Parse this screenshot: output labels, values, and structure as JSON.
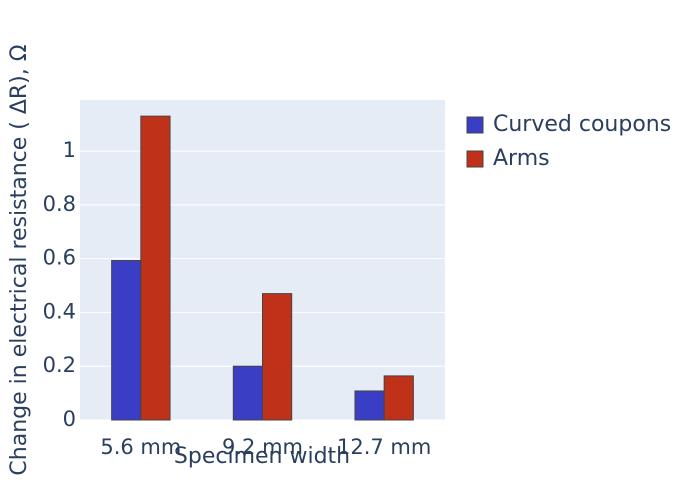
{
  "chart_data": {
    "type": "bar",
    "xlabel": "Specimen width",
    "ylabel": "Change in electrical resistance ( ΔR), Ω",
    "categories": [
      "5.6 mm",
      "9.2 mm",
      "12.7 mm"
    ],
    "series": [
      {
        "name": "Curved coupons",
        "color": "#3a3ec4",
        "values": [
          0.593,
          0.2,
          0.108
        ]
      },
      {
        "name": "Arms",
        "color": "#c0311a",
        "values": [
          1.13,
          0.47,
          0.164
        ]
      }
    ],
    "ylim": [
      0,
      1.19
    ],
    "yticks": [
      0,
      0.2,
      0.4,
      0.6,
      0.8,
      1
    ],
    "grid": true,
    "legend": "right"
  }
}
